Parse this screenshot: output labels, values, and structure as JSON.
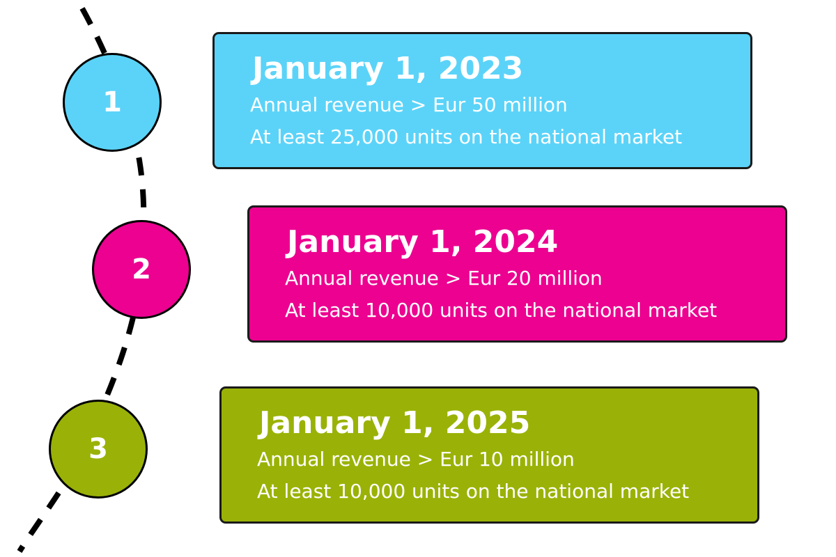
{
  "colors": {
    "step1": "#5bd3f8",
    "step2": "#ec0190",
    "step3": "#9ab207",
    "text": "#ffffff",
    "line": "#000000"
  },
  "steps": [
    {
      "number": "1",
      "date": "January 1, 2023",
      "revenue": "Annual revenue > Eur 50 million",
      "units": "At least 25,000 units on the national market"
    },
    {
      "number": "2",
      "date": "January 1, 2024",
      "revenue": "Annual revenue > Eur 20 million",
      "units": "At least 10,000 units on the national market"
    },
    {
      "number": "3",
      "date": "January 1, 2025",
      "revenue": "Annual revenue > Eur 10 million",
      "units": "At least 10,000 units on the national market"
    }
  ]
}
